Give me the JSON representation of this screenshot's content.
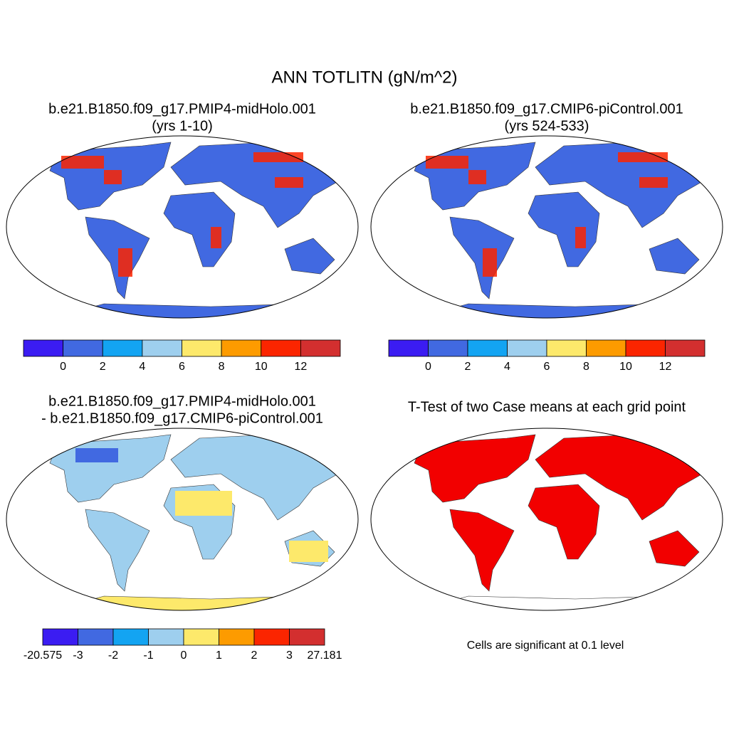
{
  "title": "ANN TOTLITN (gN/m^2)",
  "panels": [
    {
      "title": [
        "b.e21.B1850.f09_g17.PMIP4-midHolo.001",
        "(yrs 1-10)"
      ],
      "land_color": "#4169e1",
      "colorbar": {
        "colors": [
          "#3b1cf2",
          "#4169e1",
          "#13a4f2",
          "#9ecfee",
          "#fde96b",
          "#fd9b00",
          "#fb2500",
          "#d32f2f"
        ],
        "ticks": [
          0,
          2,
          4,
          6,
          8,
          10,
          12
        ]
      }
    },
    {
      "title": [
        "b.e21.B1850.f09_g17.CMIP6-piControl.001",
        "(yrs 524-533)"
      ],
      "land_color": "#4169e1",
      "colorbar": {
        "colors": [
          "#3b1cf2",
          "#4169e1",
          "#13a4f2",
          "#9ecfee",
          "#fde96b",
          "#fd9b00",
          "#fb2500",
          "#d32f2f"
        ],
        "ticks": [
          0,
          2,
          4,
          6,
          8,
          10,
          12
        ]
      }
    },
    {
      "title": [
        "b.e21.B1850.f09_g17.PMIP4-midHolo.001",
        "- b.e21.B1850.f09_g17.CMIP6-piControl.001"
      ],
      "land_color": "#9ecfee",
      "colorbar": {
        "colors": [
          "#3b1cf2",
          "#4169e1",
          "#13a4f2",
          "#9ecfee",
          "#fde96b",
          "#fd9b00",
          "#fb2500",
          "#d32f2f"
        ],
        "ticks": [
          -20.575,
          -3,
          -2,
          -1,
          0,
          1,
          2,
          3,
          27.181
        ]
      }
    },
    {
      "title": [
        "T-Test of two Case means at each grid point"
      ],
      "land_color": "#f20000",
      "note": "Cells are significant at 0.1 level"
    }
  ]
}
